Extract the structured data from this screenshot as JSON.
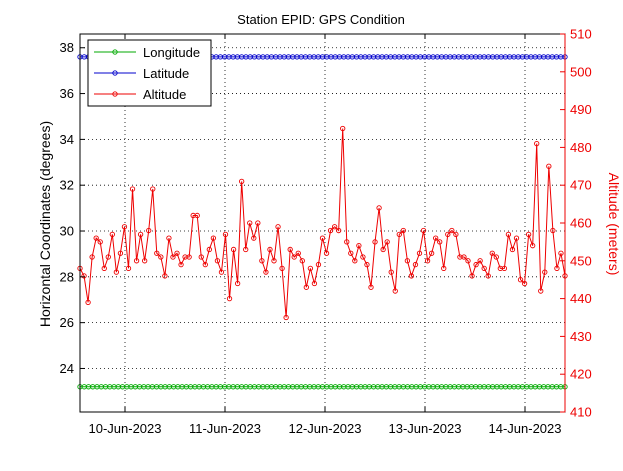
{
  "chart_data": {
    "type": "line",
    "title": "Station EPID: GPS Condition",
    "xlabel": "",
    "ylabel_left": "Horizontal Coordinates (degrees)",
    "ylabel_right": "Altitude (meters)",
    "xlim": [
      9.55,
      14.4
    ],
    "ylim_left": [
      22.1,
      38.6
    ],
    "ylim_right": [
      410,
      510
    ],
    "x_ticks": [
      10,
      11,
      12,
      13,
      14
    ],
    "x_tick_labels": [
      "10-Jun-2023",
      "11-Jun-2023",
      "12-Jun-2023",
      "13-Jun-2023",
      "14-Jun-2023"
    ],
    "y_ticks_left": [
      24,
      26,
      28,
      30,
      32,
      34,
      36,
      38
    ],
    "y_tick_labels_left": [
      "24",
      "26",
      "28",
      "30",
      "32",
      "34",
      "36",
      "38"
    ],
    "y_ticks_right": [
      410,
      420,
      430,
      440,
      450,
      460,
      470,
      480,
      490,
      500,
      510
    ],
    "y_tick_labels_right": [
      "410",
      "420",
      "430",
      "440",
      "450",
      "460",
      "470",
      "480",
      "490",
      "500",
      "510"
    ],
    "grid": true,
    "legend_position": "top-left",
    "colors": {
      "longitude": "#00aa00",
      "latitude": "#0000cc",
      "altitude": "#ee0000",
      "axis": "#000000",
      "right_axis": "#ee0000",
      "grid": "#000000"
    },
    "series": [
      {
        "name": "Longitude",
        "axis": "left",
        "color": "#00aa00",
        "constant_value": 23.2,
        "x_start": 9.55,
        "x_end": 14.4,
        "n_points": 115
      },
      {
        "name": "Latitude",
        "axis": "left",
        "color": "#0000cc",
        "constant_value": 37.6,
        "x_start": 9.55,
        "x_end": 14.4,
        "n_points": 115
      },
      {
        "name": "Altitude",
        "axis": "right",
        "color": "#ee0000",
        "x_start": 9.55,
        "x_end": 14.4,
        "values": [
          448,
          446,
          439,
          451,
          456,
          455,
          448,
          451,
          457,
          447,
          452,
          459,
          448,
          469,
          450,
          457,
          450,
          458,
          469,
          452,
          451,
          446,
          456,
          451,
          452,
          449,
          451,
          451,
          462,
          462,
          451,
          449,
          453,
          456,
          450,
          447,
          457,
          440,
          453,
          444,
          471,
          453,
          460,
          456,
          460,
          450,
          447,
          453,
          450,
          459,
          448,
          435,
          453,
          451,
          452,
          450,
          443,
          448,
          444,
          449,
          456,
          452,
          458,
          459,
          458,
          485,
          455,
          452,
          450,
          454,
          451,
          449,
          443,
          455,
          464,
          453,
          455,
          447,
          442,
          457,
          458,
          450,
          446,
          449,
          452,
          458,
          450,
          452,
          456,
          455,
          448,
          457,
          458,
          457,
          451,
          451,
          450,
          446,
          449,
          450,
          448,
          446,
          452,
          451,
          448,
          448,
          457,
          453,
          456,
          445,
          444,
          457,
          454,
          481,
          442,
          447,
          475,
          458,
          448,
          452,
          446
        ]
      }
    ]
  }
}
